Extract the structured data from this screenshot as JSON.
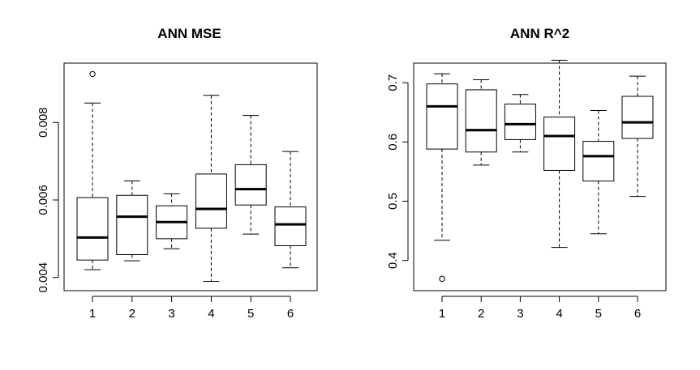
{
  "chart_data": [
    {
      "type": "boxplot",
      "title": "ANN MSE",
      "xlabel": "",
      "ylabel": "",
      "categories": [
        "1",
        "2",
        "3",
        "4",
        "5",
        "6"
      ],
      "y_ticks": [
        0.004,
        0.006,
        0.008
      ],
      "y_tick_labels": [
        "0.004",
        "0.006",
        "0.008"
      ],
      "ylim": [
        0.00366,
        0.00953
      ],
      "boxes": [
        {
          "category": "1",
          "min": 0.0042,
          "q1": 0.00445,
          "median": 0.00503,
          "q3": 0.00606,
          "max": 0.0085,
          "outliers": [
            0.00925
          ]
        },
        {
          "category": "2",
          "min": 0.00443,
          "q1": 0.00459,
          "median": 0.00557,
          "q3": 0.00612,
          "max": 0.00649,
          "outliers": []
        },
        {
          "category": "3",
          "min": 0.00474,
          "q1": 0.005,
          "median": 0.00543,
          "q3": 0.00585,
          "max": 0.00616,
          "outliers": []
        },
        {
          "category": "4",
          "min": 0.0039,
          "q1": 0.00527,
          "median": 0.00577,
          "q3": 0.00667,
          "max": 0.0087,
          "outliers": []
        },
        {
          "category": "5",
          "min": 0.00512,
          "q1": 0.00587,
          "median": 0.00628,
          "q3": 0.00691,
          "max": 0.00818,
          "outliers": []
        },
        {
          "category": "6",
          "min": 0.00425,
          "q1": 0.00482,
          "median": 0.00537,
          "q3": 0.00582,
          "max": 0.00725,
          "outliers": []
        }
      ]
    },
    {
      "type": "boxplot",
      "title": "ANN R^2",
      "xlabel": "",
      "ylabel": "",
      "categories": [
        "1",
        "2",
        "3",
        "4",
        "5",
        "6"
      ],
      "y_ticks": [
        0.4,
        0.5,
        0.6,
        0.7
      ],
      "y_tick_labels": [
        "0.4",
        "0.5",
        "0.6",
        "0.7"
      ],
      "ylim": [
        0.349,
        0.733
      ],
      "boxes": [
        {
          "category": "1",
          "min": 0.434,
          "q1": 0.588,
          "median": 0.66,
          "q3": 0.698,
          "max": 0.715,
          "outliers": [
            0.369
          ]
        },
        {
          "category": "2",
          "min": 0.561,
          "q1": 0.583,
          "median": 0.62,
          "q3": 0.688,
          "max": 0.705,
          "outliers": []
        },
        {
          "category": "3",
          "min": 0.583,
          "q1": 0.604,
          "median": 0.63,
          "q3": 0.664,
          "max": 0.68,
          "outliers": []
        },
        {
          "category": "4",
          "min": 0.422,
          "q1": 0.552,
          "median": 0.61,
          "q3": 0.642,
          "max": 0.738,
          "outliers": []
        },
        {
          "category": "5",
          "min": 0.445,
          "q1": 0.534,
          "median": 0.576,
          "q3": 0.601,
          "max": 0.653,
          "outliers": []
        },
        {
          "category": "6",
          "min": 0.508,
          "q1": 0.606,
          "median": 0.633,
          "q3": 0.677,
          "max": 0.711,
          "outliers": []
        }
      ]
    }
  ]
}
